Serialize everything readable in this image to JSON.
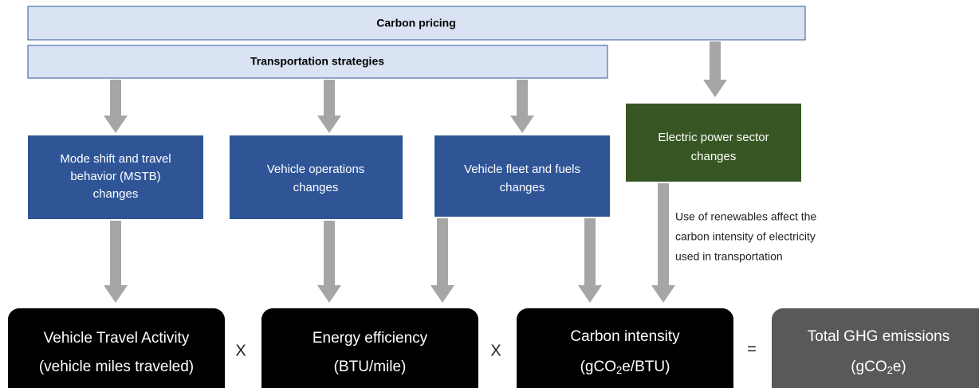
{
  "bars": [
    {
      "label": "Carbon pricing"
    },
    {
      "label": "Transportation strategies"
    }
  ],
  "strategies": [
    {
      "lines": [
        "Mode shift and travel",
        "behavior (MSTB)",
        "changes"
      ]
    },
    {
      "lines": [
        "Vehicle operations",
        "changes"
      ]
    },
    {
      "lines": [
        "Vehicle fleet and fuels",
        "changes"
      ]
    },
    {
      "lines": [
        "Electric power sector",
        "changes"
      ]
    }
  ],
  "annotation": {
    "lines": [
      "Use of renewables affect the",
      "carbon intensity of electricity",
      "used in transportation"
    ]
  },
  "equation": {
    "terms": [
      {
        "title": "Vehicle Travel Activity",
        "unit": [
          "(vehicle miles traveled)"
        ]
      },
      {
        "title": "Energy efficiency",
        "unit": [
          "(BTU/mile)"
        ]
      },
      {
        "title": "Carbon intensity",
        "unit": [
          "(gCO",
          "2",
          "e/BTU)"
        ]
      },
      {
        "title": "Total GHG emissions",
        "unit": [
          "(gCO",
          "2",
          "e)"
        ]
      }
    ],
    "operators": [
      "X",
      "X",
      "="
    ]
  }
}
